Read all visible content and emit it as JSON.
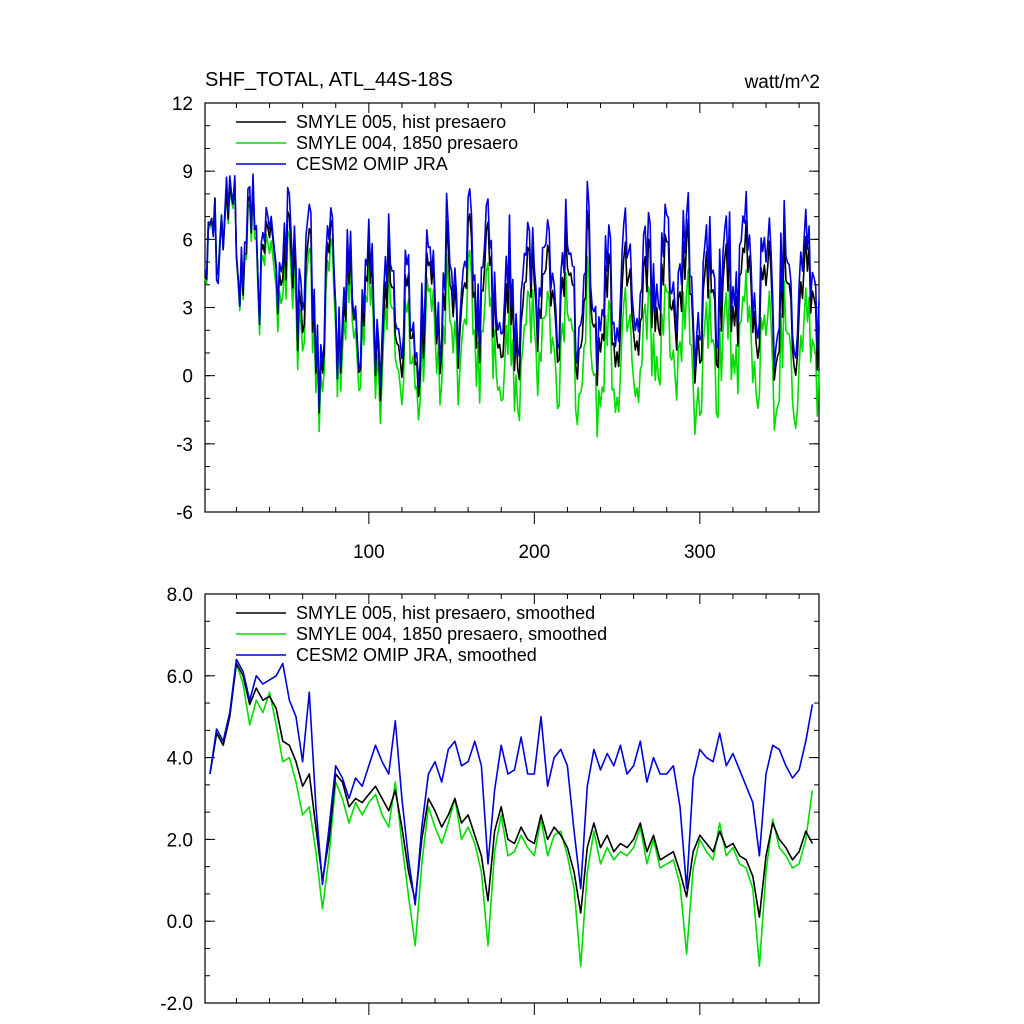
{
  "colors": {
    "smyle005": "#000000",
    "smyle004": "#00dd00",
    "omip": "#0000dd",
    "axis": "#000000"
  },
  "chart_data": [
    {
      "type": "line",
      "title": "SHF_TOTAL, ATL_44S-18S",
      "units": "watt/m^2",
      "xlabel": "",
      "ylabel": "",
      "xlim": [
        1,
        372
      ],
      "ylim": [
        -6,
        12
      ],
      "yticks": [
        "12",
        "9",
        "6",
        "3",
        "0",
        "-3",
        "-6"
      ],
      "ytick_values": [
        12,
        9,
        6,
        3,
        0,
        -3,
        -6
      ],
      "xticks": [
        "100",
        "200",
        "300"
      ],
      "xtick_values": [
        100,
        200,
        300
      ],
      "legend": [
        "SMYLE 005, hist presaero",
        "SMYLE 004, 1850 presaero",
        "CESM2 OMIP JRA"
      ],
      "legend_position": "top-left",
      "note": "Monthly series of 372 values; values sampled at key points and interpolated with monthly seasonal oscillation",
      "series": [
        {
          "name": "SMYLE 005, hist presaero",
          "x": [
            1,
            6,
            10,
            15,
            20,
            25,
            30,
            36,
            42,
            48,
            54,
            60,
            66,
            72,
            78,
            84,
            90,
            96,
            102,
            108,
            114,
            120,
            126,
            132,
            138,
            144,
            150,
            156,
            162,
            168,
            174,
            180,
            186,
            192,
            198,
            204,
            210,
            216,
            222,
            228,
            234,
            240,
            246,
            252,
            258,
            264,
            270,
            276,
            282,
            288,
            294,
            300,
            306,
            312,
            318,
            324,
            330,
            336,
            342,
            348,
            354,
            360,
            366,
            372
          ],
          "y": [
            4.8,
            6.5,
            8.4,
            6.2,
            7.0,
            5.0,
            6.0,
            5.5,
            6.0,
            5.0,
            4.5,
            4.2,
            2.5,
            2.0,
            3.8,
            2.6,
            2.8,
            3.4,
            2.6,
            2.4,
            3.5,
            2.0,
            1.5,
            2.4,
            3.4,
            3.4,
            3.2,
            3.8,
            3.6,
            3.6,
            4.0,
            1.5,
            2.8,
            3.2,
            3.8,
            4.1,
            2.5,
            3.8,
            3.6,
            3.4,
            3.8,
            1.8,
            2.4,
            3.2,
            3.6,
            3.3,
            3.9,
            3.0,
            3.8,
            3.2,
            3.6,
            1.5,
            3.2,
            3.4,
            3.7,
            3.5,
            3.8,
            3.6,
            3.4,
            3.2,
            3.6,
            2.8,
            4.0,
            3.2
          ]
        },
        {
          "name": "SMYLE 004, 1850 presaero",
          "x": [
            1,
            6,
            10,
            15,
            20,
            25,
            30,
            36,
            42,
            48,
            54,
            60,
            66,
            72,
            78,
            84,
            90,
            96,
            102,
            108,
            114,
            120,
            126,
            132,
            138,
            144,
            150,
            156,
            162,
            168,
            174,
            180,
            186,
            192,
            198,
            204,
            210,
            216,
            222,
            228,
            234,
            240,
            246,
            252,
            258,
            264,
            270,
            276,
            282,
            288,
            294,
            300,
            306,
            312,
            318,
            324,
            330,
            336,
            342,
            348,
            354,
            360,
            366,
            372
          ],
          "y": [
            4.6,
            6.4,
            8.6,
            6.0,
            6.8,
            4.8,
            5.6,
            5.0,
            5.2,
            4.2,
            3.6,
            3.4,
            1.6,
            1.2,
            3.0,
            1.8,
            2.0,
            2.6,
            1.6,
            1.4,
            2.6,
            0.8,
            0.4,
            1.4,
            2.2,
            2.0,
            1.6,
            2.2,
            2.0,
            1.8,
            2.2,
            -0.4,
            1.0,
            1.4,
            1.8,
            2.2,
            0.4,
            1.8,
            1.6,
            1.4,
            1.8,
            -0.6,
            0.4,
            1.2,
            1.6,
            1.2,
            1.8,
            0.8,
            1.6,
            1.0,
            1.4,
            -0.8,
            1.0,
            1.2,
            1.6,
            1.4,
            1.6,
            1.4,
            1.2,
            1.0,
            1.4,
            0.4,
            1.8,
            1.2
          ]
        },
        {
          "name": "CESM2 OMIP JRA",
          "x": [
            1,
            6,
            10,
            15,
            20,
            25,
            30,
            36,
            42,
            48,
            54,
            60,
            66,
            72,
            78,
            84,
            90,
            96,
            102,
            108,
            114,
            120,
            126,
            132,
            138,
            144,
            150,
            156,
            162,
            168,
            174,
            180,
            186,
            192,
            198,
            204,
            210,
            216,
            222,
            228,
            234,
            240,
            246,
            252,
            258,
            264,
            270,
            276,
            282,
            288,
            294,
            300,
            306,
            312,
            318,
            324,
            330,
            336,
            342,
            348,
            354,
            360,
            366,
            372
          ],
          "y": [
            4.8,
            6.5,
            8.4,
            6.4,
            7.2,
            5.3,
            6.2,
            5.8,
            6.4,
            5.6,
            5.4,
            5.2,
            3.2,
            2.4,
            4.2,
            3.0,
            3.2,
            3.8,
            3.2,
            3.2,
            4.4,
            2.8,
            2.0,
            3.2,
            4.0,
            4.0,
            4.2,
            4.4,
            4.6,
            4.4,
            4.8,
            2.4,
            3.8,
            4.4,
            4.6,
            5.0,
            3.4,
            4.6,
            4.6,
            4.4,
            4.8,
            2.6,
            3.6,
            4.4,
            4.8,
            4.4,
            5.0,
            4.0,
            4.8,
            4.2,
            4.6,
            2.4,
            4.2,
            4.4,
            4.8,
            4.6,
            4.8,
            4.6,
            4.4,
            4.2,
            4.6,
            3.8,
            5.0,
            4.2
          ]
        }
      ]
    },
    {
      "type": "line",
      "title": "",
      "xlabel": "",
      "ylabel": "",
      "xlim": [
        1,
        372
      ],
      "ylim": [
        -2.0,
        8.0
      ],
      "yticks": [
        "8.0",
        "6.0",
        "4.0",
        "2.0",
        "0.0",
        "-2.0"
      ],
      "ytick_values": [
        8,
        6,
        4,
        2,
        0,
        -2
      ],
      "xtick_values": [
        100,
        200,
        300
      ],
      "legend": [
        "SMYLE 005, hist presaero, smoothed",
        "SMYLE 004, 1850 presaero, smoothed",
        "CESM2 OMIP JRA, smoothed"
      ],
      "legend_position": "top-left",
      "series": [
        {
          "name": "SMYLE 005, hist presaero, smoothed",
          "x": [
            4,
            8,
            12,
            16,
            20,
            24,
            28,
            32,
            36,
            40,
            44,
            48,
            52,
            56,
            60,
            64,
            68,
            72,
            76,
            80,
            84,
            88,
            92,
            96,
            100,
            104,
            108,
            112,
            116,
            120,
            124,
            128,
            132,
            136,
            140,
            144,
            148,
            152,
            156,
            160,
            164,
            168,
            172,
            176,
            180,
            184,
            188,
            192,
            196,
            200,
            204,
            208,
            212,
            216,
            220,
            224,
            228,
            232,
            236,
            240,
            244,
            248,
            252,
            256,
            260,
            264,
            268,
            272,
            276,
            280,
            284,
            288,
            292,
            296,
            300,
            304,
            308,
            312,
            316,
            320,
            324,
            328,
            332,
            336,
            340,
            344,
            348,
            352,
            356,
            360,
            364,
            368
          ],
          "y": [
            3.6,
            4.6,
            4.3,
            5.0,
            6.3,
            6.0,
            5.3,
            5.7,
            5.4,
            5.5,
            5.2,
            4.4,
            4.3,
            3.9,
            3.3,
            3.6,
            2.3,
            1.0,
            2.0,
            3.6,
            3.4,
            2.8,
            3.0,
            2.9,
            3.1,
            3.3,
            3.0,
            2.7,
            3.2,
            2.3,
            1.2,
            0.5,
            2.0,
            3.0,
            2.7,
            2.3,
            2.6,
            3.0,
            2.4,
            2.6,
            2.1,
            1.6,
            0.5,
            2.2,
            2.8,
            2.0,
            1.9,
            2.3,
            2.0,
            1.9,
            2.6,
            2.0,
            2.3,
            2.1,
            1.8,
            1.2,
            0.2,
            1.8,
            2.4,
            1.8,
            2.1,
            1.7,
            1.9,
            1.8,
            2.0,
            2.4,
            1.7,
            2.1,
            1.5,
            1.6,
            1.7,
            1.2,
            0.6,
            1.7,
            2.1,
            1.9,
            1.7,
            2.2,
            1.8,
            1.9,
            1.6,
            1.5,
            1.1,
            0.1,
            1.6,
            2.4,
            2.0,
            1.8,
            1.5,
            1.7,
            2.2,
            1.9
          ]
        },
        {
          "name": "SMYLE 004, 1850 presaero, smoothed",
          "x": [
            4,
            8,
            12,
            16,
            20,
            24,
            28,
            32,
            36,
            40,
            44,
            48,
            52,
            56,
            60,
            64,
            68,
            72,
            76,
            80,
            84,
            88,
            92,
            96,
            100,
            104,
            108,
            112,
            116,
            120,
            124,
            128,
            132,
            136,
            140,
            144,
            148,
            152,
            156,
            160,
            164,
            168,
            172,
            176,
            180,
            184,
            188,
            192,
            196,
            200,
            204,
            208,
            212,
            216,
            220,
            224,
            228,
            232,
            236,
            240,
            244,
            248,
            252,
            256,
            260,
            264,
            268,
            272,
            276,
            280,
            284,
            288,
            292,
            296,
            300,
            304,
            308,
            312,
            316,
            320,
            324,
            328,
            332,
            336,
            340,
            344,
            348,
            352,
            356,
            360,
            364,
            368
          ],
          "y": [
            3.6,
            4.6,
            4.4,
            5.1,
            6.3,
            5.8,
            4.8,
            5.4,
            5.1,
            5.6,
            4.8,
            3.9,
            4.0,
            3.4,
            2.6,
            2.8,
            1.7,
            0.3,
            1.6,
            3.4,
            3.0,
            2.4,
            2.9,
            2.6,
            2.9,
            3.1,
            2.6,
            2.3,
            3.4,
            1.9,
            0.6,
            -0.6,
            1.4,
            2.8,
            2.3,
            1.9,
            2.4,
            3.0,
            2.0,
            2.3,
            1.9,
            1.2,
            -0.6,
            1.7,
            2.6,
            1.6,
            1.7,
            2.1,
            1.8,
            1.6,
            2.5,
            1.6,
            2.1,
            2.2,
            1.6,
            0.8,
            -1.1,
            1.2,
            2.2,
            1.4,
            1.8,
            1.5,
            1.7,
            1.6,
            1.8,
            2.3,
            1.4,
            2.0,
            1.3,
            1.4,
            1.5,
            0.9,
            -0.8,
            1.3,
            2.0,
            1.7,
            1.5,
            2.4,
            1.6,
            1.8,
            1.4,
            1.3,
            0.8,
            -1.1,
            1.2,
            2.5,
            1.8,
            1.6,
            1.3,
            1.4,
            2.0,
            3.2
          ]
        },
        {
          "name": "CESM2 OMIP JRA, smoothed",
          "x": [
            4,
            8,
            12,
            16,
            20,
            24,
            28,
            32,
            36,
            40,
            44,
            48,
            52,
            56,
            60,
            64,
            68,
            72,
            76,
            80,
            84,
            88,
            92,
            96,
            100,
            104,
            108,
            112,
            116,
            120,
            124,
            128,
            132,
            136,
            140,
            144,
            148,
            152,
            156,
            160,
            164,
            168,
            172,
            176,
            180,
            184,
            188,
            192,
            196,
            200,
            204,
            208,
            212,
            216,
            220,
            224,
            228,
            232,
            236,
            240,
            244,
            248,
            252,
            256,
            260,
            264,
            268,
            272,
            276,
            280,
            284,
            288,
            292,
            296,
            300,
            304,
            308,
            312,
            316,
            320,
            324,
            328,
            332,
            336,
            340,
            344,
            348,
            352,
            356,
            360,
            364,
            368
          ],
          "y": [
            3.6,
            4.7,
            4.4,
            5.1,
            6.4,
            6.1,
            5.4,
            6.0,
            5.8,
            5.9,
            6.0,
            6.3,
            5.4,
            5.0,
            3.9,
            5.6,
            2.8,
            0.9,
            2.3,
            3.8,
            3.5,
            3.0,
            3.5,
            3.3,
            3.8,
            4.3,
            3.9,
            3.6,
            4.9,
            3.0,
            1.5,
            0.4,
            2.3,
            3.6,
            3.9,
            3.4,
            4.2,
            4.4,
            3.8,
            3.9,
            4.4,
            3.8,
            1.4,
            3.2,
            4.3,
            3.6,
            3.7,
            4.5,
            3.6,
            3.6,
            5.0,
            3.3,
            4.0,
            4.2,
            3.8,
            2.2,
            0.8,
            3.3,
            4.2,
            3.7,
            4.1,
            3.8,
            4.3,
            3.6,
            3.8,
            4.4,
            3.4,
            4.0,
            3.6,
            3.6,
            3.8,
            2.8,
            0.8,
            3.5,
            4.2,
            4.0,
            3.9,
            4.6,
            3.8,
            4.1,
            3.7,
            3.3,
            2.9,
            1.6,
            3.6,
            4.3,
            4.2,
            3.8,
            3.5,
            3.7,
            4.4,
            5.3
          ]
        }
      ]
    }
  ]
}
